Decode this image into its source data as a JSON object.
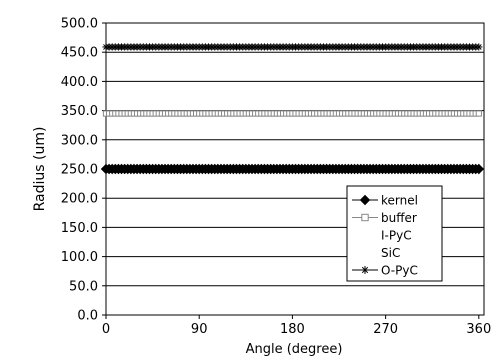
{
  "chart_data": {
    "type": "line",
    "title": "",
    "xlabel": "Angle (degree)",
    "ylabel": "Radius (um)",
    "xlim": [
      0,
      365
    ],
    "ylim": [
      0,
      500
    ],
    "x_ticks": [
      "0",
      "90",
      "180",
      "270",
      "360"
    ],
    "x_tick_values": [
      0,
      90,
      180,
      270,
      360
    ],
    "y_ticks": [
      "0.0",
      "50.0",
      "100.0",
      "150.0",
      "200.0",
      "250.0",
      "300.0",
      "350.0",
      "400.0",
      "450.0",
      "500.0"
    ],
    "y_tick_values": [
      0,
      50,
      100,
      150,
      200,
      250,
      300,
      350,
      400,
      450,
      500
    ],
    "grid": "horizontal",
    "legend_position": "lower-right",
    "series": [
      {
        "name": "kernel",
        "marker": "filled-diamond",
        "color": "#000000",
        "y_constant": 250
      },
      {
        "name": "buffer",
        "marker": "open-square",
        "color": "#888888",
        "y_constant": 345
      },
      {
        "name": "I-PyC",
        "marker": "none",
        "color": "#000000",
        "y_constant": null
      },
      {
        "name": "SiC",
        "marker": "none",
        "color": "#000000",
        "y_constant": null
      },
      {
        "name": "O-PyC",
        "marker": "asterisk",
        "color": "#000000",
        "y_constant": 459
      }
    ]
  }
}
